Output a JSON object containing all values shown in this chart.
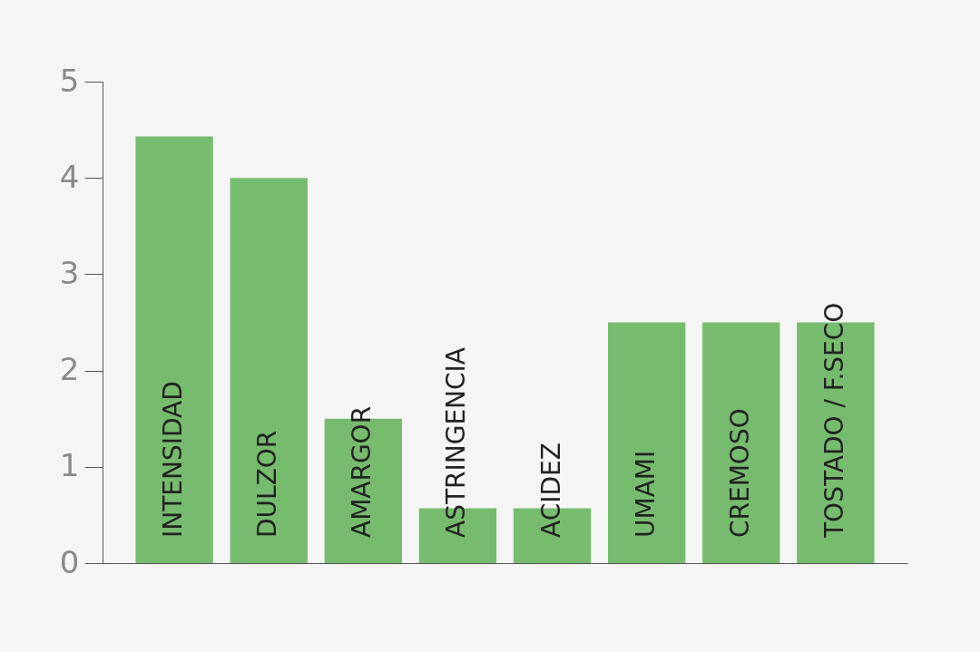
{
  "chart_data": {
    "type": "bar",
    "categories": [
      "INTENSIDAD",
      "DULZOR",
      "AMARGOR",
      "ASTRINGENCIA",
      "ACIDEZ",
      "UMAMI",
      "CREMOSO",
      "TOSTADO / F.SECO"
    ],
    "values": [
      4.43,
      4.0,
      1.5,
      0.57,
      0.57,
      2.5,
      2.5,
      2.5
    ],
    "color": "#77bc6e",
    "ylim": [
      0,
      5
    ],
    "yticks": [
      0,
      1,
      2,
      3,
      4,
      5
    ],
    "grid": false
  }
}
